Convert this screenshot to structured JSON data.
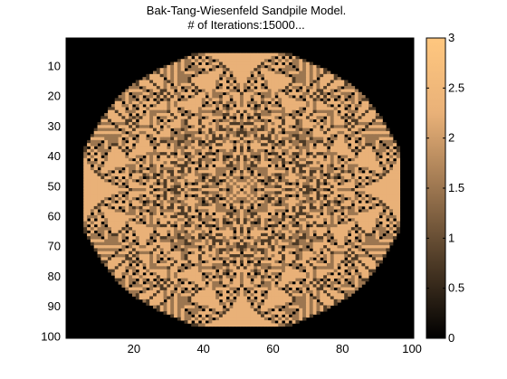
{
  "chart_data": {
    "type": "heatmap",
    "title": "Bak-Tang-Wiesenfeld Sandpile Model.",
    "subtitle": "# of Iterations:15000...",
    "grid": false,
    "xlim": [
      0.5,
      100.5
    ],
    "ylim": [
      0.5,
      100.5
    ],
    "y_reversed": true,
    "x_ticks": [
      20,
      40,
      60,
      80,
      100
    ],
    "y_ticks": [
      10,
      20,
      30,
      40,
      50,
      60,
      70,
      80,
      90,
      100
    ],
    "grid_size": [
      100,
      100
    ],
    "iterations": 15000,
    "colorbar": {
      "placement": "right",
      "range": [
        0,
        3
      ],
      "ticks": [
        0,
        0.5,
        1,
        1.5,
        2,
        2.5,
        3
      ],
      "tick_labels": [
        "0",
        "0.5",
        "1",
        "1.5",
        "2",
        "2.5",
        "3"
      ],
      "colormap": "copper",
      "colors": [
        "#000000",
        "#4d3a26",
        "#9c7650",
        "#e9b178",
        "#ffc77f"
      ]
    }
  }
}
